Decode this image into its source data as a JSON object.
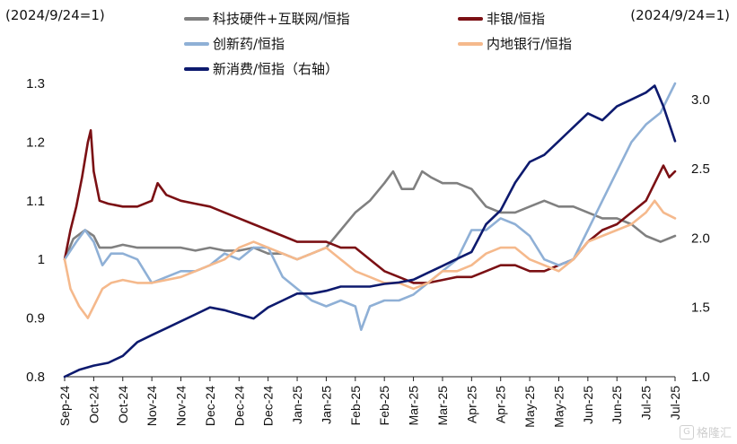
{
  "chart_data": {
    "type": "line",
    "left_axis_label": "(2024/9/24=1)",
    "right_axis_label": "(2024/9/24=1)",
    "left_ylim": [
      0.8,
      1.3
    ],
    "left_yticks": [
      "0.8",
      "0.9",
      "1",
      "1.1",
      "1.2",
      "1.3"
    ],
    "right_ylim": [
      1.0,
      3.2
    ],
    "right_yticks": [
      "1.0",
      "1.5",
      "2.0",
      "2.5",
      "3.0"
    ],
    "x_range": [
      0,
      21
    ],
    "x_labels": [
      "Sep-24",
      "Oct-24",
      "Oct-24",
      "Nov-24",
      "Nov-24",
      "Dec-24",
      "Dec-24",
      "Dec-24",
      "Jan-25",
      "Jan-25",
      "Feb-25",
      "Feb-25",
      "Mar-25",
      "Mar-25",
      "Apr-25",
      "Apr-25",
      "May-25",
      "May-25",
      "Jun-25",
      "Jun-25",
      "Jul-25",
      "Jul-25"
    ],
    "grid": false,
    "legend_position": "top",
    "series": [
      {
        "name": "科技硬件+互联网/恒指",
        "color": "#808080",
        "axis": "left",
        "points": [
          [
            0,
            1.0
          ],
          [
            0.3,
            1.035
          ],
          [
            0.7,
            1.05
          ],
          [
            1.0,
            1.04
          ],
          [
            1.2,
            1.02
          ],
          [
            1.6,
            1.02
          ],
          [
            2.0,
            1.025
          ],
          [
            2.5,
            1.02
          ],
          [
            3.0,
            1.02
          ],
          [
            3.5,
            1.02
          ],
          [
            4.0,
            1.02
          ],
          [
            4.5,
            1.015
          ],
          [
            5.0,
            1.02
          ],
          [
            5.5,
            1.015
          ],
          [
            6.0,
            1.015
          ],
          [
            6.5,
            1.02
          ],
          [
            7.0,
            1.01
          ],
          [
            7.5,
            1.01
          ],
          [
            8.0,
            1.0
          ],
          [
            8.5,
            1.01
          ],
          [
            9.0,
            1.02
          ],
          [
            9.5,
            1.05
          ],
          [
            10.0,
            1.08
          ],
          [
            10.5,
            1.1
          ],
          [
            11.0,
            1.13
          ],
          [
            11.3,
            1.15
          ],
          [
            11.6,
            1.12
          ],
          [
            12.0,
            1.12
          ],
          [
            12.3,
            1.15
          ],
          [
            12.6,
            1.14
          ],
          [
            13.0,
            1.13
          ],
          [
            13.5,
            1.13
          ],
          [
            14.0,
            1.12
          ],
          [
            14.5,
            1.09
          ],
          [
            15.0,
            1.08
          ],
          [
            15.5,
            1.08
          ],
          [
            16.0,
            1.09
          ],
          [
            16.5,
            1.1
          ],
          [
            17.0,
            1.09
          ],
          [
            17.5,
            1.09
          ],
          [
            18.0,
            1.08
          ],
          [
            18.5,
            1.07
          ],
          [
            19.0,
            1.07
          ],
          [
            19.5,
            1.06
          ],
          [
            20.0,
            1.04
          ],
          [
            20.5,
            1.03
          ],
          [
            21.0,
            1.04
          ]
        ]
      },
      {
        "name": "非银/恒指",
        "color": "#7b1014",
        "axis": "left",
        "points": [
          [
            0,
            1.0
          ],
          [
            0.2,
            1.05
          ],
          [
            0.4,
            1.09
          ],
          [
            0.6,
            1.14
          ],
          [
            0.8,
            1.2
          ],
          [
            0.9,
            1.22
          ],
          [
            1.0,
            1.15
          ],
          [
            1.2,
            1.1
          ],
          [
            1.5,
            1.095
          ],
          [
            2.0,
            1.09
          ],
          [
            2.5,
            1.09
          ],
          [
            3.0,
            1.1
          ],
          [
            3.2,
            1.13
          ],
          [
            3.5,
            1.11
          ],
          [
            4.0,
            1.1
          ],
          [
            4.5,
            1.095
          ],
          [
            5.0,
            1.09
          ],
          [
            5.5,
            1.08
          ],
          [
            6.0,
            1.07
          ],
          [
            6.5,
            1.06
          ],
          [
            7.0,
            1.05
          ],
          [
            7.5,
            1.04
          ],
          [
            8.0,
            1.03
          ],
          [
            8.5,
            1.03
          ],
          [
            9.0,
            1.03
          ],
          [
            9.5,
            1.02
          ],
          [
            10.0,
            1.02
          ],
          [
            10.5,
            1.0
          ],
          [
            11.0,
            0.98
          ],
          [
            11.5,
            0.97
          ],
          [
            12.0,
            0.96
          ],
          [
            12.5,
            0.96
          ],
          [
            13.0,
            0.965
          ],
          [
            13.5,
            0.97
          ],
          [
            14.0,
            0.97
          ],
          [
            14.5,
            0.98
          ],
          [
            15.0,
            0.99
          ],
          [
            15.5,
            0.99
          ],
          [
            16.0,
            0.98
          ],
          [
            16.5,
            0.98
          ],
          [
            17.0,
            0.99
          ],
          [
            17.5,
            1.0
          ],
          [
            18.0,
            1.03
          ],
          [
            18.5,
            1.05
          ],
          [
            19.0,
            1.06
          ],
          [
            19.5,
            1.08
          ],
          [
            20.0,
            1.1
          ],
          [
            20.3,
            1.13
          ],
          [
            20.6,
            1.16
          ],
          [
            20.8,
            1.14
          ],
          [
            21.0,
            1.15
          ]
        ]
      },
      {
        "name": "创新药/恒指",
        "color": "#8fb0d6",
        "axis": "left",
        "points": [
          [
            0,
            1.0
          ],
          [
            0.4,
            1.03
          ],
          [
            0.7,
            1.05
          ],
          [
            1.0,
            1.03
          ],
          [
            1.3,
            0.99
          ],
          [
            1.6,
            1.01
          ],
          [
            2.0,
            1.01
          ],
          [
            2.5,
            1.0
          ],
          [
            3.0,
            0.96
          ],
          [
            3.5,
            0.97
          ],
          [
            4.0,
            0.98
          ],
          [
            4.5,
            0.98
          ],
          [
            5.0,
            0.99
          ],
          [
            5.5,
            1.01
          ],
          [
            6.0,
            1.0
          ],
          [
            6.5,
            1.02
          ],
          [
            7.0,
            1.02
          ],
          [
            7.5,
            0.97
          ],
          [
            8.0,
            0.95
          ],
          [
            8.5,
            0.93
          ],
          [
            9.0,
            0.92
          ],
          [
            9.5,
            0.93
          ],
          [
            10.0,
            0.92
          ],
          [
            10.2,
            0.88
          ],
          [
            10.5,
            0.92
          ],
          [
            11.0,
            0.93
          ],
          [
            11.5,
            0.93
          ],
          [
            12.0,
            0.94
          ],
          [
            12.5,
            0.96
          ],
          [
            13.0,
            0.98
          ],
          [
            13.5,
            1.0
          ],
          [
            14.0,
            1.05
          ],
          [
            14.5,
            1.05
          ],
          [
            15.0,
            1.07
          ],
          [
            15.5,
            1.06
          ],
          [
            16.0,
            1.04
          ],
          [
            16.5,
            1.0
          ],
          [
            17.0,
            0.99
          ],
          [
            17.5,
            1.0
          ],
          [
            18.0,
            1.05
          ],
          [
            18.5,
            1.1
          ],
          [
            19.0,
            1.15
          ],
          [
            19.5,
            1.2
          ],
          [
            20.0,
            1.23
          ],
          [
            20.5,
            1.25
          ],
          [
            21.0,
            1.3
          ]
        ]
      },
      {
        "name": "内地银行/恒指",
        "color": "#f5b98c",
        "axis": "left",
        "points": [
          [
            0,
            1.0
          ],
          [
            0.2,
            0.95
          ],
          [
            0.5,
            0.92
          ],
          [
            0.8,
            0.9
          ],
          [
            1.0,
            0.92
          ],
          [
            1.3,
            0.95
          ],
          [
            1.6,
            0.96
          ],
          [
            2.0,
            0.965
          ],
          [
            2.5,
            0.96
          ],
          [
            3.0,
            0.96
          ],
          [
            3.5,
            0.965
          ],
          [
            4.0,
            0.97
          ],
          [
            4.5,
            0.98
          ],
          [
            5.0,
            0.99
          ],
          [
            5.5,
            1.0
          ],
          [
            6.0,
            1.02
          ],
          [
            6.5,
            1.03
          ],
          [
            7.0,
            1.02
          ],
          [
            7.5,
            1.01
          ],
          [
            8.0,
            1.0
          ],
          [
            8.5,
            1.01
          ],
          [
            9.0,
            1.02
          ],
          [
            9.5,
            1.0
          ],
          [
            10.0,
            0.98
          ],
          [
            10.5,
            0.97
          ],
          [
            11.0,
            0.96
          ],
          [
            11.5,
            0.96
          ],
          [
            12.0,
            0.95
          ],
          [
            12.5,
            0.96
          ],
          [
            13.0,
            0.98
          ],
          [
            13.5,
            0.98
          ],
          [
            14.0,
            0.99
          ],
          [
            14.5,
            1.01
          ],
          [
            15.0,
            1.02
          ],
          [
            15.5,
            1.02
          ],
          [
            16.0,
            1.0
          ],
          [
            16.5,
            0.99
          ],
          [
            17.0,
            0.98
          ],
          [
            17.5,
            1.0
          ],
          [
            18.0,
            1.03
          ],
          [
            18.5,
            1.04
          ],
          [
            19.0,
            1.05
          ],
          [
            19.5,
            1.06
          ],
          [
            20.0,
            1.08
          ],
          [
            20.3,
            1.1
          ],
          [
            20.6,
            1.08
          ],
          [
            21.0,
            1.07
          ]
        ]
      },
      {
        "name": "新消费/恒指（右轴）",
        "color": "#0d1a6e",
        "axis": "right",
        "points": [
          [
            0,
            1.0
          ],
          [
            0.5,
            1.05
          ],
          [
            1.0,
            1.08
          ],
          [
            1.5,
            1.1
          ],
          [
            2.0,
            1.15
          ],
          [
            2.5,
            1.25
          ],
          [
            3.0,
            1.3
          ],
          [
            3.5,
            1.35
          ],
          [
            4.0,
            1.4
          ],
          [
            4.5,
            1.45
          ],
          [
            5.0,
            1.5
          ],
          [
            5.5,
            1.48
          ],
          [
            6.0,
            1.45
          ],
          [
            6.5,
            1.42
          ],
          [
            7.0,
            1.5
          ],
          [
            7.5,
            1.55
          ],
          [
            8.0,
            1.6
          ],
          [
            8.5,
            1.6
          ],
          [
            9.0,
            1.62
          ],
          [
            9.5,
            1.65
          ],
          [
            10.0,
            1.65
          ],
          [
            10.5,
            1.65
          ],
          [
            11.0,
            1.67
          ],
          [
            11.5,
            1.68
          ],
          [
            12.0,
            1.7
          ],
          [
            12.5,
            1.75
          ],
          [
            13.0,
            1.8
          ],
          [
            13.5,
            1.85
          ],
          [
            14.0,
            1.9
          ],
          [
            14.5,
            2.1
          ],
          [
            15.0,
            2.2
          ],
          [
            15.5,
            2.4
          ],
          [
            16.0,
            2.55
          ],
          [
            16.5,
            2.6
          ],
          [
            17.0,
            2.7
          ],
          [
            17.5,
            2.8
          ],
          [
            18.0,
            2.9
          ],
          [
            18.5,
            2.85
          ],
          [
            19.0,
            2.95
          ],
          [
            19.5,
            3.0
          ],
          [
            20.0,
            3.05
          ],
          [
            20.3,
            3.1
          ],
          [
            20.6,
            2.95
          ],
          [
            21.0,
            2.7
          ]
        ]
      }
    ]
  }
}
